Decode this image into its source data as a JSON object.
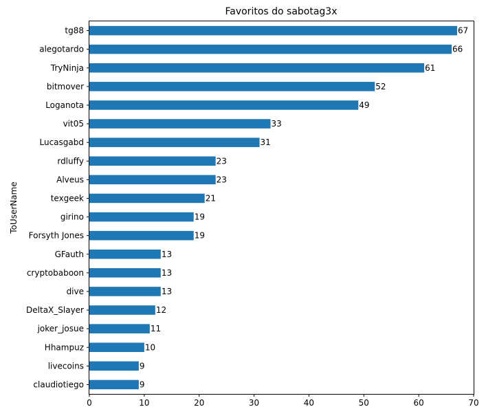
{
  "chart_data": {
    "type": "bar",
    "orientation": "horizontal",
    "title": "Favoritos do sabotag3x",
    "xlabel": "",
    "ylabel": "ToUserName",
    "categories": [
      "tg88",
      "alegotardo",
      "TryNinja",
      "bitmover",
      "Loganota",
      "vit05",
      "Lucasgabd",
      "rdluffy",
      "Alveus",
      "texgeek",
      "girino",
      "Forsyth Jones",
      "GFauth",
      "cryptobaboon",
      "dive",
      "DeltaX_Slayer",
      "joker_josue",
      "Hhampuz",
      "livecoins",
      "claudiotiego"
    ],
    "values": [
      67,
      66,
      61,
      52,
      49,
      33,
      31,
      23,
      23,
      21,
      19,
      19,
      13,
      13,
      13,
      12,
      11,
      10,
      9,
      9
    ],
    "xlim": [
      0,
      70
    ],
    "xticks": [
      0,
      10,
      20,
      30,
      40,
      50,
      60,
      70
    ],
    "grid": false,
    "bar_color": "#1f77b4",
    "data_labels": true
  }
}
